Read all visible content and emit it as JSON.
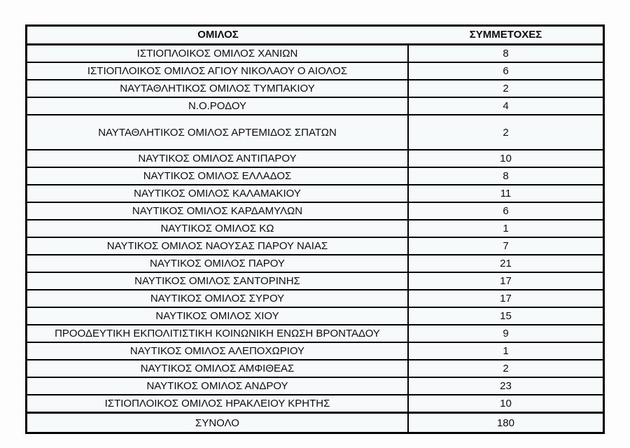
{
  "page": {
    "background": "#fdfdfd",
    "cell_background": "#f7fafb",
    "border_color": "#000000",
    "text_color": "#0d0d0d"
  },
  "table": {
    "header": {
      "club_label": "ΟΜΙΛΟΣ",
      "participations_label": "ΣΥΜΜΕΤΟΧΕΣ"
    },
    "rows": [
      {
        "name": "ΙΣΤΙΟΠΛΟΙΚΟΣ ΟΜΙΛΟΣ ΧΑΝΙΩΝ",
        "value": "8",
        "tall": false
      },
      {
        "name": "ΙΣΤΙΟΠΛΟΙΚΟΣ ΟΜΙΛΟΣ ΑΓΙΟΥ ΝΙΚΟΛΑΟΥ Ο ΑΙΟΛΟΣ",
        "value": "6",
        "tall": false
      },
      {
        "name": "ΝΑΥΤΑΘΛΗΤΙΚΟΣ ΟΜΙΛΟΣ ΤΥΜΠΑΚΙΟΥ",
        "value": "2",
        "tall": false
      },
      {
        "name": "Ν.Ο.ΡΟΔΟΥ",
        "value": "4",
        "tall": false
      },
      {
        "name": "ΝΑΥΤΑΘΛΗΤΙΚΟΣ ΟΜΙΛΟΣ ΑΡΤΕΜΙΔΟΣ ΣΠΑΤΩΝ",
        "value": "2",
        "tall": true
      },
      {
        "name": "ΝΑΥΤΙΚΟΣ ΟΜΙΛΟΣ ΑΝΤΙΠΑΡΟΥ",
        "value": "10",
        "tall": false
      },
      {
        "name": "ΝΑΥΤΙΚΟΣ ΟΜΙΛΟΣ ΕΛΛΑΔΟΣ",
        "value": "8",
        "tall": false
      },
      {
        "name": "ΝΑΥΤΙΚΟΣ ΟΜΙΛΟΣ ΚΑΛΑΜΑΚΙΟΥ",
        "value": "11",
        "tall": false
      },
      {
        "name": "ΝΑΥΤΙΚΟΣ ΟΜΙΛΟΣ ΚΑΡΔΑΜΥΛΩΝ",
        "value": "6",
        "tall": false
      },
      {
        "name": "ΝΑΥΤΙΚΟΣ ΟΜΙΛΟΣ ΚΩ",
        "value": "1",
        "tall": false
      },
      {
        "name": "ΝΑΥΤΙΚΟΣ ΟΜΙΛΟΣ ΝΑΟΥΣΑΣ ΠΑΡΟΥ ΝΑΙΑΣ",
        "value": "7",
        "tall": false
      },
      {
        "name": "ΝΑΥΤΙΚΟΣ ΟΜΙΛΟΣ ΠΑΡΟΥ",
        "value": "21",
        "tall": false
      },
      {
        "name": "ΝΑΥΤΙΚΟΣ ΟΜΙΛΟΣ ΣΑΝΤΟΡΙΝΗΣ",
        "value": "17",
        "tall": false
      },
      {
        "name": "ΝΑΥΤΙΚΟΣ ΟΜΙΛΟΣ ΣΥΡΟΥ",
        "value": "17",
        "tall": false
      },
      {
        "name": "ΝΑΥΤΙΚΟΣ ΟΜΙΛΟΣ ΧΙΟΥ",
        "value": "15",
        "tall": false
      },
      {
        "name": "ΠΡΟΟΔΕΥΤΙΚΗ ΕΚΠΟΛΙΤΙΣΤΙΚΗ ΚΟΙΝΩΝΙΚΗ ΕΝΩΣΗ ΒΡΟΝΤΑΔΟΥ",
        "value": "9",
        "tall": false
      },
      {
        "name": "ΝΑΥΤΙΚΟΣ ΟΜΙΛΟΣ ΑΛΕΠΟΧΩΡΙΟΥ",
        "value": "1",
        "tall": false
      },
      {
        "name": "ΝΑΥΤΙΚΟΣ ΟΜΙΛΟΣ ΑΜΦΙΘΕΑΣ",
        "value": "2",
        "tall": false
      },
      {
        "name": "ΝΑΥΤΙΚΟΣ ΟΜΙΛΟΣ ΑΝΔΡΟΥ",
        "value": "23",
        "tall": false
      },
      {
        "name": "ΙΣΤΙΟΠΛΟΙΚΟΣ ΟΜΙΛΟΣ ΗΡΑΚΛΕΙΟΥ ΚΡΗΤΗΣ",
        "value": "10",
        "tall": false
      }
    ],
    "total": {
      "label": "ΣΥΝΟΛΟ",
      "value": "180"
    }
  }
}
